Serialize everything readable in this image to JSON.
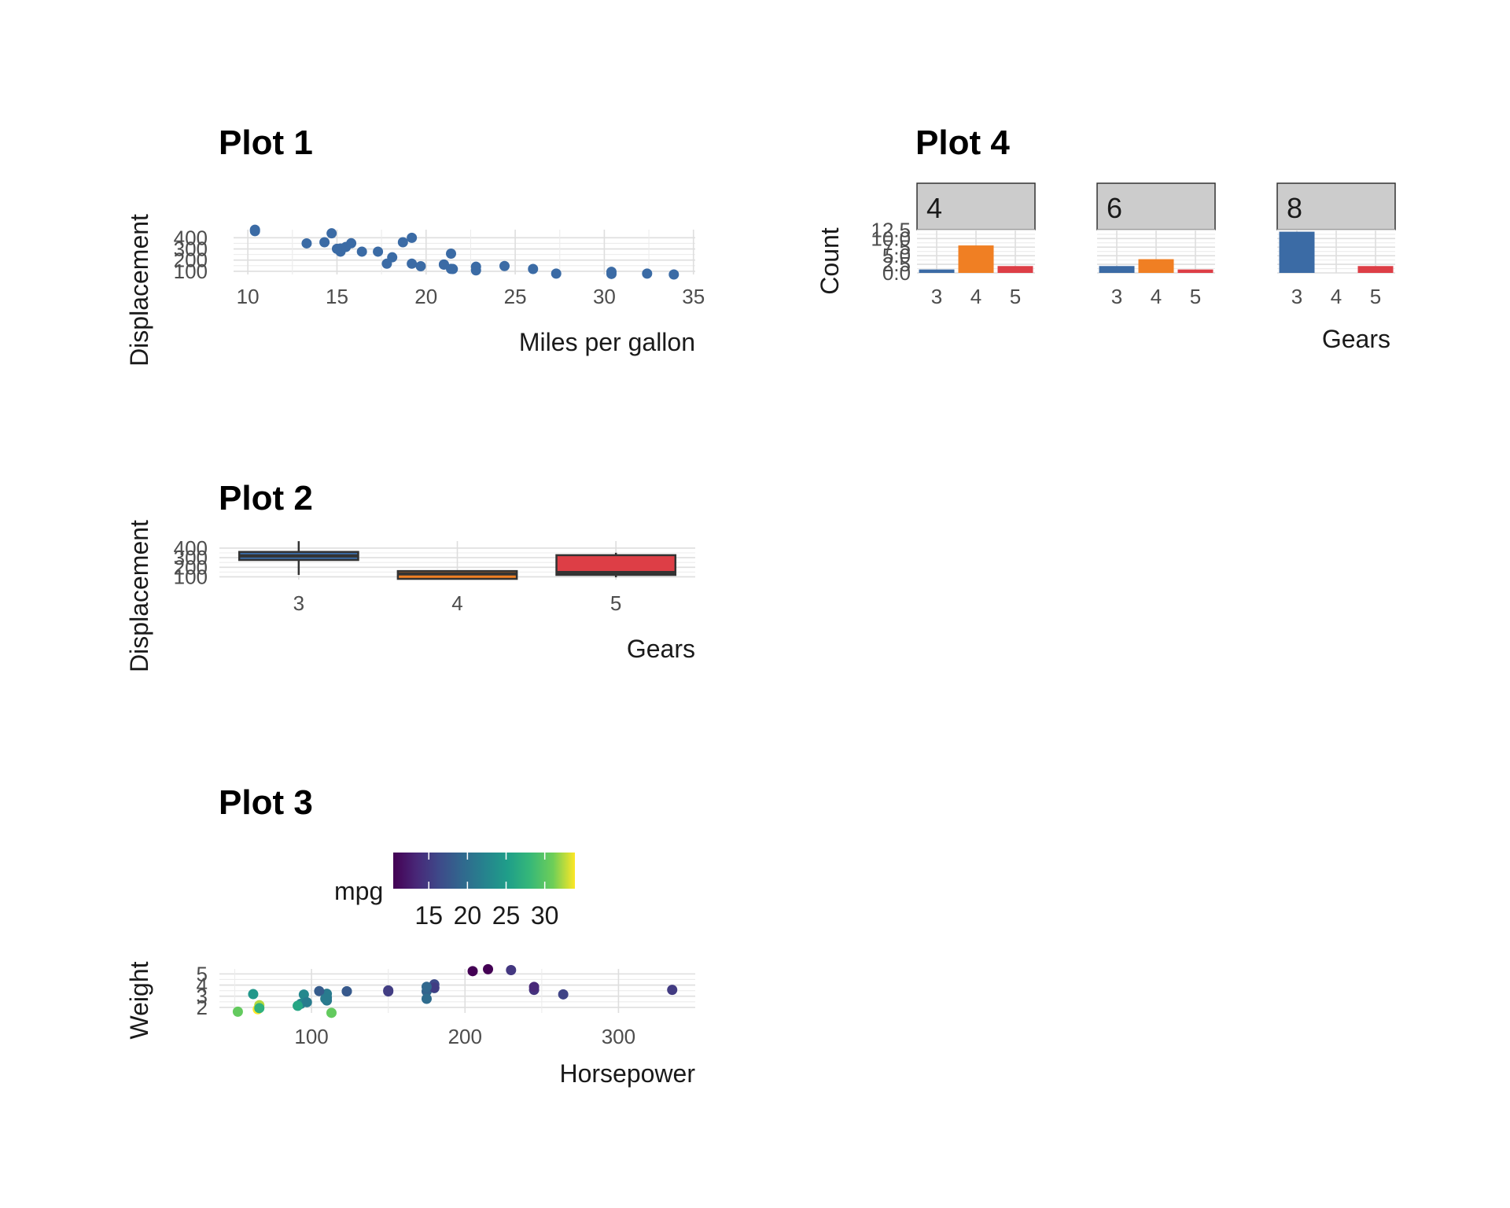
{
  "chart_data": [
    {
      "type": "scatter",
      "title": "Plot 1",
      "xlabel": "Miles per gallon",
      "ylabel": "Displacement",
      "xlim": [
        9.2,
        35.1
      ],
      "ylim": [
        71,
        473
      ],
      "xticks": [
        10,
        15,
        20,
        25,
        30,
        35
      ],
      "yticks": [
        100,
        200,
        300,
        400
      ],
      "grid": true,
      "color": "#3b6ba5",
      "points": [
        {
          "x": 21.0,
          "y": 160
        },
        {
          "x": 21.0,
          "y": 160
        },
        {
          "x": 22.8,
          "y": 108
        },
        {
          "x": 21.4,
          "y": 258
        },
        {
          "x": 18.7,
          "y": 360
        },
        {
          "x": 18.1,
          "y": 225
        },
        {
          "x": 14.3,
          "y": 360
        },
        {
          "x": 24.4,
          "y": 146.7
        },
        {
          "x": 22.8,
          "y": 140.8
        },
        {
          "x": 19.2,
          "y": 167.6
        },
        {
          "x": 17.8,
          "y": 167.6
        },
        {
          "x": 16.4,
          "y": 275.8
        },
        {
          "x": 17.3,
          "y": 275.8
        },
        {
          "x": 15.2,
          "y": 275.8
        },
        {
          "x": 10.4,
          "y": 472
        },
        {
          "x": 10.4,
          "y": 460
        },
        {
          "x": 14.7,
          "y": 440
        },
        {
          "x": 32.4,
          "y": 78.7
        },
        {
          "x": 30.4,
          "y": 75.7
        },
        {
          "x": 33.9,
          "y": 71.1
        },
        {
          "x": 21.5,
          "y": 120.1
        },
        {
          "x": 15.5,
          "y": 318
        },
        {
          "x": 15.2,
          "y": 304
        },
        {
          "x": 13.3,
          "y": 350
        },
        {
          "x": 19.2,
          "y": 400
        },
        {
          "x": 27.3,
          "y": 79
        },
        {
          "x": 26.0,
          "y": 120.3
        },
        {
          "x": 30.4,
          "y": 95.1
        },
        {
          "x": 15.8,
          "y": 351
        },
        {
          "x": 19.7,
          "y": 145
        },
        {
          "x": 15.0,
          "y": 301
        },
        {
          "x": 21.4,
          "y": 121
        }
      ]
    },
    {
      "type": "box",
      "title": "Plot 2",
      "xlabel": "Gears",
      "ylabel": "Displacement",
      "categories": [
        "3",
        "4",
        "5"
      ],
      "ylim": [
        71,
        473
      ],
      "yticks": [
        100,
        200,
        300,
        400
      ],
      "grid": true,
      "boxes": [
        {
          "category": "3",
          "min": 120.1,
          "q1": 275.8,
          "median": 318,
          "q3": 360,
          "max": 472,
          "fill": "#3b6ba5"
        },
        {
          "category": "4",
          "min": 71.1,
          "q1": 78.9,
          "median": 130.9,
          "q3": 160,
          "max": 167.6,
          "fill": "#f07f23"
        },
        {
          "category": "5",
          "min": 95.1,
          "q1": 120.3,
          "median": 145,
          "q3": 326,
          "max": 351,
          "fill": "#dd3e46"
        }
      ]
    },
    {
      "type": "scatter",
      "title": "Plot 3",
      "xlabel": "Horsepower",
      "ylabel": "Weight",
      "xlim": [
        40,
        350
      ],
      "ylim": [
        1.5,
        5.45
      ],
      "xticks": [
        100,
        200,
        300
      ],
      "yticks": [
        2,
        3,
        4,
        5
      ],
      "grid": true,
      "legend": {
        "title": "mpg",
        "position": "top",
        "ticks": [
          15,
          20,
          25,
          30
        ],
        "range": [
          10.4,
          33.9
        ],
        "palette": "viridis"
      },
      "points": [
        {
          "x": 110,
          "y": 2.62,
          "mpg": 21.0
        },
        {
          "x": 110,
          "y": 2.875,
          "mpg": 21.0
        },
        {
          "x": 93,
          "y": 2.32,
          "mpg": 22.8
        },
        {
          "x": 110,
          "y": 3.215,
          "mpg": 21.4
        },
        {
          "x": 175,
          "y": 3.44,
          "mpg": 18.7
        },
        {
          "x": 105,
          "y": 3.46,
          "mpg": 18.1
        },
        {
          "x": 245,
          "y": 3.57,
          "mpg": 14.3
        },
        {
          "x": 62,
          "y": 3.19,
          "mpg": 24.4
        },
        {
          "x": 95,
          "y": 3.15,
          "mpg": 22.8
        },
        {
          "x": 123,
          "y": 3.44,
          "mpg": 19.2
        },
        {
          "x": 123,
          "y": 3.44,
          "mpg": 17.8
        },
        {
          "x": 180,
          "y": 4.07,
          "mpg": 16.4
        },
        {
          "x": 180,
          "y": 3.73,
          "mpg": 17.3
        },
        {
          "x": 180,
          "y": 3.78,
          "mpg": 15.2
        },
        {
          "x": 205,
          "y": 5.25,
          "mpg": 10.4
        },
        {
          "x": 215,
          "y": 5.424,
          "mpg": 10.4
        },
        {
          "x": 230,
          "y": 5.345,
          "mpg": 14.7
        },
        {
          "x": 66,
          "y": 2.2,
          "mpg": 32.4
        },
        {
          "x": 52,
          "y": 1.615,
          "mpg": 30.4
        },
        {
          "x": 65,
          "y": 1.835,
          "mpg": 33.9
        },
        {
          "x": 97,
          "y": 2.465,
          "mpg": 21.5
        },
        {
          "x": 150,
          "y": 3.52,
          "mpg": 15.5
        },
        {
          "x": 150,
          "y": 3.435,
          "mpg": 15.2
        },
        {
          "x": 245,
          "y": 3.84,
          "mpg": 13.3
        },
        {
          "x": 175,
          "y": 3.845,
          "mpg": 19.2
        },
        {
          "x": 66,
          "y": 1.935,
          "mpg": 27.3
        },
        {
          "x": 91,
          "y": 2.14,
          "mpg": 26.0
        },
        {
          "x": 113,
          "y": 1.513,
          "mpg": 30.4
        },
        {
          "x": 264,
          "y": 3.17,
          "mpg": 15.8
        },
        {
          "x": 175,
          "y": 2.77,
          "mpg": 19.7
        },
        {
          "x": 335,
          "y": 3.57,
          "mpg": 15.0
        },
        {
          "x": 109,
          "y": 2.78,
          "mpg": 21.4
        }
      ]
    },
    {
      "type": "bar",
      "title": "Plot 4",
      "xlabel": "Gears",
      "ylabel": "Count",
      "ylim": [
        0,
        12.6
      ],
      "yticks": [
        0,
        2.5,
        5,
        7.5,
        10,
        12.5
      ],
      "ytick_labels": [
        "0.0",
        "2.5",
        "5.0",
        "7.5",
        "10.0",
        "12.5"
      ],
      "grid": true,
      "categories": [
        "3",
        "4",
        "5"
      ],
      "colors": [
        "#3b6ba5",
        "#f07f23",
        "#dd3e46"
      ],
      "facets": [
        {
          "label": "4",
          "values": [
            1,
            8,
            2
          ]
        },
        {
          "label": "6",
          "values": [
            2,
            4,
            1
          ]
        },
        {
          "label": "8",
          "values": [
            12,
            0,
            2
          ]
        }
      ]
    }
  ]
}
